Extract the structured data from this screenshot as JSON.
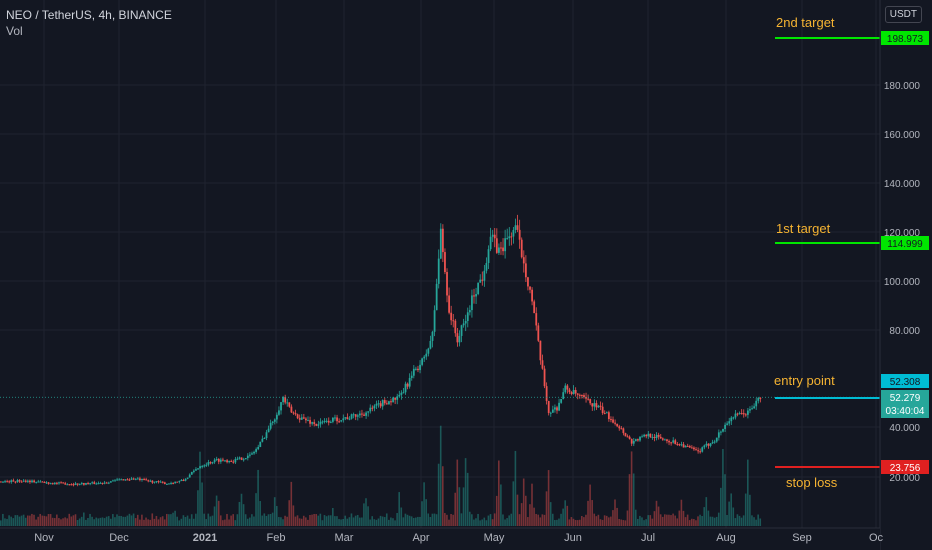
{
  "header": {
    "title": "NEO / TetherUS, 4h, BINANCE",
    "indicator": "Vol",
    "currency_label": "USDT"
  },
  "chart_data": {
    "type": "candlestick",
    "x_ticks": [
      "Nov",
      "Dec",
      "2021",
      "Feb",
      "Mar",
      "Apr",
      "May",
      "Jun",
      "Jul",
      "Aug",
      "Sep",
      "Oc"
    ],
    "y_ticks": [
      "20.000",
      "40.000",
      "80.000",
      "100.000",
      "120.000",
      "140.000",
      "160.000",
      "180.000"
    ],
    "y_scale": "log",
    "price_path": [
      [
        0,
        18.2
      ],
      [
        3,
        18.5
      ],
      [
        6,
        17.6
      ],
      [
        9,
        17.2
      ],
      [
        12,
        17.6
      ],
      [
        14,
        18.8
      ],
      [
        16,
        19.3
      ],
      [
        18,
        18.3
      ],
      [
        20,
        17.4
      ],
      [
        22,
        18.6
      ],
      [
        24,
        24.5
      ],
      [
        26,
        26.8
      ],
      [
        28,
        26.5
      ],
      [
        30,
        28.5
      ],
      [
        31,
        32
      ],
      [
        32,
        38
      ],
      [
        33,
        44
      ],
      [
        34,
        52
      ],
      [
        35,
        46
      ],
      [
        36,
        44
      ],
      [
        38,
        41
      ],
      [
        40,
        43
      ],
      [
        42,
        44
      ],
      [
        44,
        46
      ],
      [
        46,
        50
      ],
      [
        48,
        52
      ],
      [
        49,
        58
      ],
      [
        50,
        64
      ],
      [
        51,
        68
      ],
      [
        52,
        78
      ],
      [
        53,
        120
      ],
      [
        54,
        88
      ],
      [
        55,
        76
      ],
      [
        56,
        84
      ],
      [
        57,
        95
      ],
      [
        58,
        102
      ],
      [
        59,
        118
      ],
      [
        60,
        112
      ],
      [
        62,
        122
      ],
      [
        63,
        108
      ],
      [
        64,
        92
      ],
      [
        65,
        68
      ],
      [
        66,
        46
      ],
      [
        67,
        48
      ],
      [
        68,
        56
      ],
      [
        70,
        52
      ],
      [
        72,
        48
      ],
      [
        74,
        42
      ],
      [
        76,
        34
      ],
      [
        78,
        37
      ],
      [
        80,
        35
      ],
      [
        82,
        33
      ],
      [
        84,
        30
      ],
      [
        86,
        35
      ],
      [
        88,
        44
      ],
      [
        90,
        46
      ],
      [
        91.5,
        52.3
      ]
    ],
    "volume_spikes": [
      [
        3,
        0.05
      ],
      [
        10,
        0.1
      ],
      [
        16,
        0.12
      ],
      [
        21,
        0.18
      ],
      [
        24,
        0.55
      ],
      [
        26,
        0.35
      ],
      [
        29,
        0.3
      ],
      [
        31,
        0.45
      ],
      [
        33,
        0.25
      ],
      [
        35,
        0.35
      ],
      [
        40,
        0.2
      ],
      [
        44,
        0.3
      ],
      [
        48,
        0.25
      ],
      [
        51,
        0.35
      ],
      [
        53,
        0.8
      ],
      [
        55,
        0.5
      ],
      [
        56,
        0.7
      ],
      [
        60,
        0.55
      ],
      [
        62,
        0.6
      ],
      [
        63,
        0.4
      ],
      [
        64,
        0.35
      ],
      [
        66,
        0.45
      ],
      [
        68,
        0.3
      ],
      [
        71,
        0.35
      ],
      [
        74,
        0.3
      ],
      [
        76,
        0.7
      ],
      [
        79,
        0.25
      ],
      [
        82,
        0.2
      ],
      [
        85,
        0.25
      ],
      [
        87,
        0.65
      ],
      [
        88,
        0.35
      ],
      [
        90,
        0.6
      ]
    ],
    "levels": [
      {
        "id": "second-target",
        "name": "2nd target",
        "value": 198.973,
        "label": "198.973",
        "color": "#00e600",
        "text_color": "#f5b332"
      },
      {
        "id": "first-target",
        "name": "1st target",
        "value": 114.999,
        "label": "114.999",
        "color": "#00e600",
        "text_color": "#f5b332"
      },
      {
        "id": "entry-point",
        "name": "entry point",
        "value": 52.308,
        "label": "52.308",
        "color": "#00bcd4",
        "text_color": "#f5b332"
      },
      {
        "id": "stop-loss",
        "name": "stop loss",
        "value": 23.756,
        "label": "23.756",
        "color": "#e02020",
        "text_color": "#f5b332"
      }
    ],
    "last_price": {
      "value": "52.279",
      "countdown": "03:40:04",
      "color": "#26a69a"
    }
  }
}
